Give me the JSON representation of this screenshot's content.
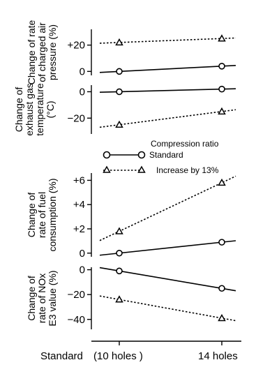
{
  "chart_data": [
    {
      "type": "line",
      "ylabel": [
        "Change of rate",
        "of charged air",
        "pressure (%)"
      ],
      "yticks": [
        {
          "value": 0,
          "label": "0"
        },
        {
          "value": 20,
          "label": "+20"
        }
      ],
      "ylim": [
        -3,
        32
      ],
      "series": [
        {
          "name": "Standard",
          "style": "solid",
          "marker": "circle",
          "values": [
            0,
            4
          ]
        },
        {
          "name": "Increase by 13%",
          "style": "dotted",
          "marker": "triangle",
          "values": [
            22,
            25
          ]
        }
      ]
    },
    {
      "type": "line",
      "ylabel": [
        "Change of",
        "exhaust gas",
        "temperature",
        "(°C)"
      ],
      "yticks": [
        {
          "value": 0,
          "label": "0"
        },
        {
          "value": -20,
          "label": "−20"
        }
      ],
      "ylim": [
        -32,
        5
      ],
      "series": [
        {
          "name": "Standard",
          "style": "solid",
          "marker": "circle",
          "values": [
            0,
            2
          ]
        },
        {
          "name": "Increase by 13%",
          "style": "dotted",
          "marker": "triangle",
          "values": [
            -25,
            -15
          ]
        }
      ]
    },
    {
      "type": "line",
      "ylabel": [
        "Change of",
        "rate of fuel",
        "consumption (%)"
      ],
      "yticks": [
        {
          "value": 0,
          "label": "0"
        },
        {
          "value": 2,
          "label": "+2"
        },
        {
          "value": 4,
          "label": "+4"
        },
        {
          "value": 6,
          "label": "+6"
        }
      ],
      "ylim": [
        -0.3,
        6.6
      ],
      "series": [
        {
          "name": "Standard",
          "style": "solid",
          "marker": "circle",
          "values": [
            0,
            0.9
          ]
        },
        {
          "name": "Increase by 13%",
          "style": "dotted",
          "marker": "triangle",
          "values": [
            1.8,
            5.8
          ]
        }
      ]
    },
    {
      "type": "line",
      "ylabel": [
        "Change of",
        "rate of NOx",
        "E3 value (%)"
      ],
      "yticks": [
        {
          "value": 0,
          "label": "0"
        },
        {
          "value": -20,
          "label": "−20"
        },
        {
          "value": -40,
          "label": "−40"
        }
      ],
      "ylim": [
        -48,
        2
      ],
      "series": [
        {
          "name": "Standard",
          "style": "solid",
          "marker": "circle",
          "values": [
            -1,
            -15
          ]
        },
        {
          "name": "Increase by 13%",
          "style": "dotted",
          "marker": "triangle",
          "values": [
            -24,
            -39
          ]
        }
      ]
    }
  ],
  "x_categories": [
    "(10 holes )",
    "14 holes"
  ],
  "x_prefix": "Standard",
  "legend": {
    "title": "Compression ratio",
    "entries": [
      {
        "label": "Standard",
        "style": "solid",
        "marker": "circle"
      },
      {
        "label": "Increase by 13%",
        "style": "dotted",
        "marker": "triangle"
      }
    ]
  }
}
